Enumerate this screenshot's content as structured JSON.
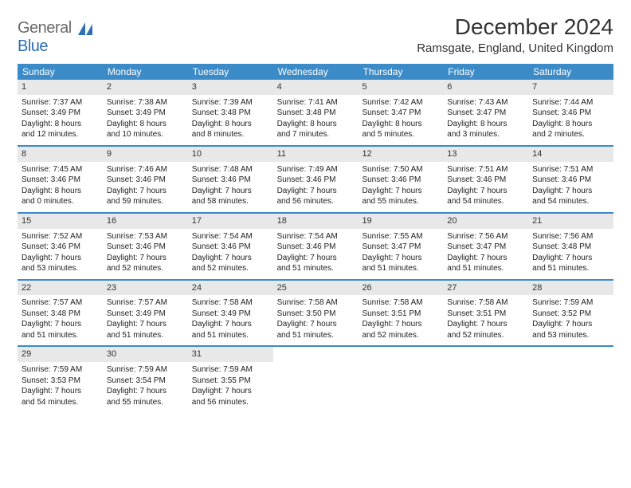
{
  "brand": {
    "part1": "General",
    "part2": "Blue"
  },
  "title": "December 2024",
  "location": "Ramsgate, England, United Kingdom",
  "header_bg": "#3b8bc9",
  "week_border": "#3b8bc9",
  "daynum_bg": "#e8e8e8",
  "daysOfWeek": [
    "Sunday",
    "Monday",
    "Tuesday",
    "Wednesday",
    "Thursday",
    "Friday",
    "Saturday"
  ],
  "weeks": [
    [
      {
        "n": "1",
        "sr": "Sunrise: 7:37 AM",
        "ss": "Sunset: 3:49 PM",
        "d1": "Daylight: 8 hours",
        "d2": "and 12 minutes."
      },
      {
        "n": "2",
        "sr": "Sunrise: 7:38 AM",
        "ss": "Sunset: 3:49 PM",
        "d1": "Daylight: 8 hours",
        "d2": "and 10 minutes."
      },
      {
        "n": "3",
        "sr": "Sunrise: 7:39 AM",
        "ss": "Sunset: 3:48 PM",
        "d1": "Daylight: 8 hours",
        "d2": "and 8 minutes."
      },
      {
        "n": "4",
        "sr": "Sunrise: 7:41 AM",
        "ss": "Sunset: 3:48 PM",
        "d1": "Daylight: 8 hours",
        "d2": "and 7 minutes."
      },
      {
        "n": "5",
        "sr": "Sunrise: 7:42 AM",
        "ss": "Sunset: 3:47 PM",
        "d1": "Daylight: 8 hours",
        "d2": "and 5 minutes."
      },
      {
        "n": "6",
        "sr": "Sunrise: 7:43 AM",
        "ss": "Sunset: 3:47 PM",
        "d1": "Daylight: 8 hours",
        "d2": "and 3 minutes."
      },
      {
        "n": "7",
        "sr": "Sunrise: 7:44 AM",
        "ss": "Sunset: 3:46 PM",
        "d1": "Daylight: 8 hours",
        "d2": "and 2 minutes."
      }
    ],
    [
      {
        "n": "8",
        "sr": "Sunrise: 7:45 AM",
        "ss": "Sunset: 3:46 PM",
        "d1": "Daylight: 8 hours",
        "d2": "and 0 minutes."
      },
      {
        "n": "9",
        "sr": "Sunrise: 7:46 AM",
        "ss": "Sunset: 3:46 PM",
        "d1": "Daylight: 7 hours",
        "d2": "and 59 minutes."
      },
      {
        "n": "10",
        "sr": "Sunrise: 7:48 AM",
        "ss": "Sunset: 3:46 PM",
        "d1": "Daylight: 7 hours",
        "d2": "and 58 minutes."
      },
      {
        "n": "11",
        "sr": "Sunrise: 7:49 AM",
        "ss": "Sunset: 3:46 PM",
        "d1": "Daylight: 7 hours",
        "d2": "and 56 minutes."
      },
      {
        "n": "12",
        "sr": "Sunrise: 7:50 AM",
        "ss": "Sunset: 3:46 PM",
        "d1": "Daylight: 7 hours",
        "d2": "and 55 minutes."
      },
      {
        "n": "13",
        "sr": "Sunrise: 7:51 AM",
        "ss": "Sunset: 3:46 PM",
        "d1": "Daylight: 7 hours",
        "d2": "and 54 minutes."
      },
      {
        "n": "14",
        "sr": "Sunrise: 7:51 AM",
        "ss": "Sunset: 3:46 PM",
        "d1": "Daylight: 7 hours",
        "d2": "and 54 minutes."
      }
    ],
    [
      {
        "n": "15",
        "sr": "Sunrise: 7:52 AM",
        "ss": "Sunset: 3:46 PM",
        "d1": "Daylight: 7 hours",
        "d2": "and 53 minutes."
      },
      {
        "n": "16",
        "sr": "Sunrise: 7:53 AM",
        "ss": "Sunset: 3:46 PM",
        "d1": "Daylight: 7 hours",
        "d2": "and 52 minutes."
      },
      {
        "n": "17",
        "sr": "Sunrise: 7:54 AM",
        "ss": "Sunset: 3:46 PM",
        "d1": "Daylight: 7 hours",
        "d2": "and 52 minutes."
      },
      {
        "n": "18",
        "sr": "Sunrise: 7:54 AM",
        "ss": "Sunset: 3:46 PM",
        "d1": "Daylight: 7 hours",
        "d2": "and 51 minutes."
      },
      {
        "n": "19",
        "sr": "Sunrise: 7:55 AM",
        "ss": "Sunset: 3:47 PM",
        "d1": "Daylight: 7 hours",
        "d2": "and 51 minutes."
      },
      {
        "n": "20",
        "sr": "Sunrise: 7:56 AM",
        "ss": "Sunset: 3:47 PM",
        "d1": "Daylight: 7 hours",
        "d2": "and 51 minutes."
      },
      {
        "n": "21",
        "sr": "Sunrise: 7:56 AM",
        "ss": "Sunset: 3:48 PM",
        "d1": "Daylight: 7 hours",
        "d2": "and 51 minutes."
      }
    ],
    [
      {
        "n": "22",
        "sr": "Sunrise: 7:57 AM",
        "ss": "Sunset: 3:48 PM",
        "d1": "Daylight: 7 hours",
        "d2": "and 51 minutes."
      },
      {
        "n": "23",
        "sr": "Sunrise: 7:57 AM",
        "ss": "Sunset: 3:49 PM",
        "d1": "Daylight: 7 hours",
        "d2": "and 51 minutes."
      },
      {
        "n": "24",
        "sr": "Sunrise: 7:58 AM",
        "ss": "Sunset: 3:49 PM",
        "d1": "Daylight: 7 hours",
        "d2": "and 51 minutes."
      },
      {
        "n": "25",
        "sr": "Sunrise: 7:58 AM",
        "ss": "Sunset: 3:50 PM",
        "d1": "Daylight: 7 hours",
        "d2": "and 51 minutes."
      },
      {
        "n": "26",
        "sr": "Sunrise: 7:58 AM",
        "ss": "Sunset: 3:51 PM",
        "d1": "Daylight: 7 hours",
        "d2": "and 52 minutes."
      },
      {
        "n": "27",
        "sr": "Sunrise: 7:58 AM",
        "ss": "Sunset: 3:51 PM",
        "d1": "Daylight: 7 hours",
        "d2": "and 52 minutes."
      },
      {
        "n": "28",
        "sr": "Sunrise: 7:59 AM",
        "ss": "Sunset: 3:52 PM",
        "d1": "Daylight: 7 hours",
        "d2": "and 53 minutes."
      }
    ],
    [
      {
        "n": "29",
        "sr": "Sunrise: 7:59 AM",
        "ss": "Sunset: 3:53 PM",
        "d1": "Daylight: 7 hours",
        "d2": "and 54 minutes."
      },
      {
        "n": "30",
        "sr": "Sunrise: 7:59 AM",
        "ss": "Sunset: 3:54 PM",
        "d1": "Daylight: 7 hours",
        "d2": "and 55 minutes."
      },
      {
        "n": "31",
        "sr": "Sunrise: 7:59 AM",
        "ss": "Sunset: 3:55 PM",
        "d1": "Daylight: 7 hours",
        "d2": "and 56 minutes."
      },
      null,
      null,
      null,
      null
    ]
  ]
}
